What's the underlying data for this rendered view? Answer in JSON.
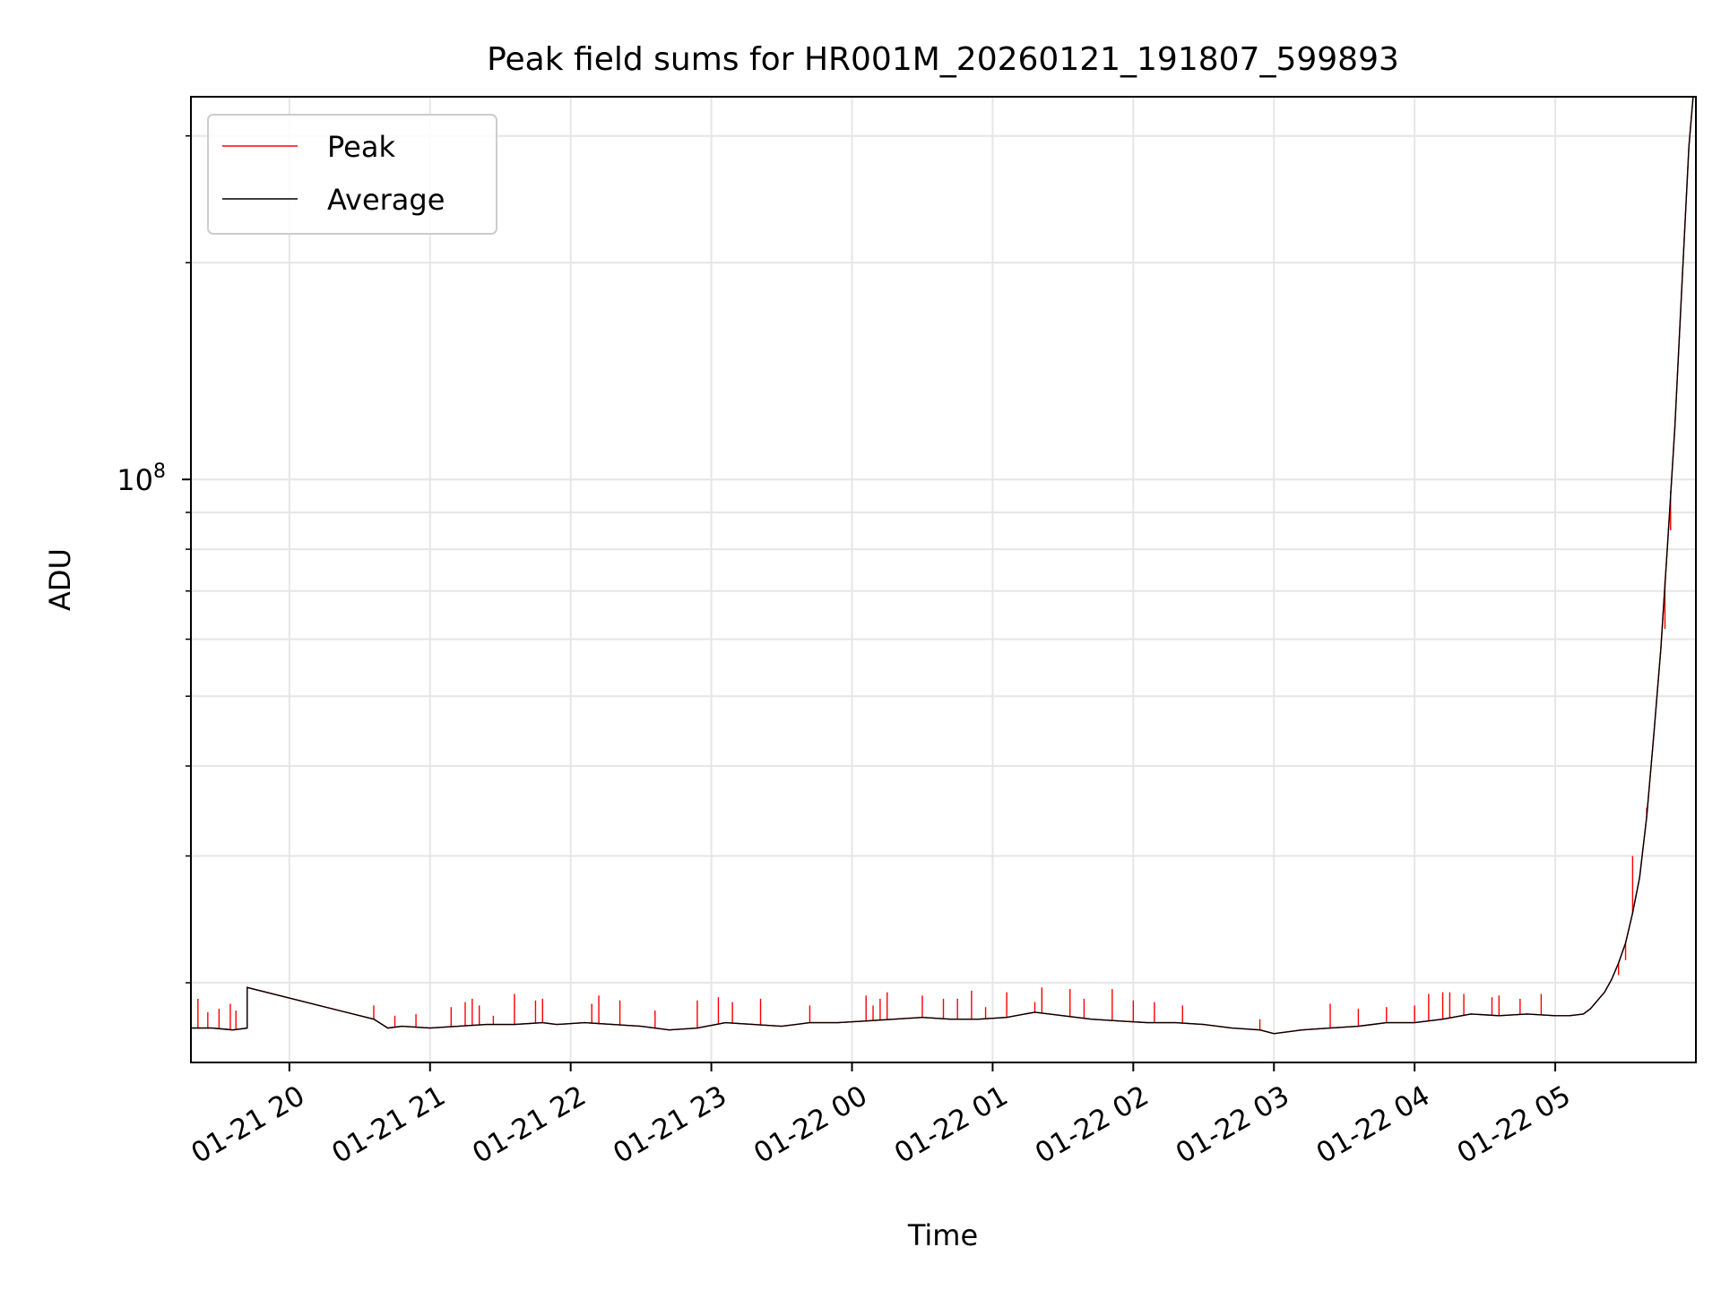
{
  "chart_data": {
    "type": "line",
    "title": "Peak field sums for HR001M_20260121_191807_599893",
    "xlabel": "Time",
    "ylabel": "ADU",
    "yscale": "log",
    "xlim_hours": [
      -0.7,
      10.0
    ],
    "ylim": [
      15500000,
      340000000
    ],
    "grid": true,
    "legend_position": "upper-left",
    "x_ticks": [
      {
        "t": 0,
        "label": "01-21 20"
      },
      {
        "t": 1,
        "label": "01-21 21"
      },
      {
        "t": 2,
        "label": "01-21 22"
      },
      {
        "t": 3,
        "label": "01-21 23"
      },
      {
        "t": 4,
        "label": "01-22 00"
      },
      {
        "t": 5,
        "label": "01-22 01"
      },
      {
        "t": 6,
        "label": "01-22 02"
      },
      {
        "t": 7,
        "label": "01-22 03"
      },
      {
        "t": 8,
        "label": "01-22 04"
      },
      {
        "t": 9,
        "label": "01-22 05"
      }
    ],
    "y_major_ticks": [
      {
        "value": 100000000,
        "base": "10",
        "exponent": "8"
      }
    ],
    "y_minor_ticks": [
      20000000,
      30000000,
      40000000,
      50000000,
      60000000,
      70000000,
      80000000,
      90000000,
      200000000,
      300000000
    ],
    "series": [
      {
        "name": "Average",
        "color": "#000000",
        "points": [
          [
            -0.7,
            17.3
          ],
          [
            -0.55,
            17.3
          ],
          [
            -0.4,
            17.2
          ],
          [
            -0.3,
            17.3
          ],
          [
            -0.3,
            19.7
          ],
          [
            0.6,
            17.8
          ],
          [
            0.7,
            17.3
          ],
          [
            0.8,
            17.4
          ],
          [
            1.0,
            17.3
          ],
          [
            1.2,
            17.4
          ],
          [
            1.4,
            17.5
          ],
          [
            1.6,
            17.5
          ],
          [
            1.8,
            17.6
          ],
          [
            1.9,
            17.5
          ],
          [
            2.1,
            17.6
          ],
          [
            2.3,
            17.5
          ],
          [
            2.5,
            17.4
          ],
          [
            2.7,
            17.2
          ],
          [
            2.9,
            17.3
          ],
          [
            3.1,
            17.6
          ],
          [
            3.3,
            17.5
          ],
          [
            3.5,
            17.4
          ],
          [
            3.7,
            17.6
          ],
          [
            3.9,
            17.6
          ],
          [
            4.1,
            17.7
          ],
          [
            4.3,
            17.8
          ],
          [
            4.5,
            17.9
          ],
          [
            4.7,
            17.8
          ],
          [
            4.9,
            17.8
          ],
          [
            5.1,
            17.9
          ],
          [
            5.3,
            18.2
          ],
          [
            5.5,
            18.0
          ],
          [
            5.7,
            17.8
          ],
          [
            5.9,
            17.7
          ],
          [
            6.1,
            17.6
          ],
          [
            6.3,
            17.6
          ],
          [
            6.5,
            17.5
          ],
          [
            6.7,
            17.3
          ],
          [
            6.9,
            17.2
          ],
          [
            7.0,
            17.0
          ],
          [
            7.2,
            17.2
          ],
          [
            7.4,
            17.3
          ],
          [
            7.6,
            17.4
          ],
          [
            7.8,
            17.6
          ],
          [
            8.0,
            17.6
          ],
          [
            8.2,
            17.8
          ],
          [
            8.4,
            18.1
          ],
          [
            8.6,
            18.0
          ],
          [
            8.8,
            18.1
          ],
          [
            9.0,
            18.0
          ],
          [
            9.1,
            18.0
          ],
          [
            9.2,
            18.1
          ],
          [
            9.25,
            18.4
          ],
          [
            9.3,
            18.9
          ],
          [
            9.35,
            19.4
          ],
          [
            9.4,
            20.2
          ],
          [
            9.45,
            21.3
          ],
          [
            9.5,
            22.7
          ],
          [
            9.55,
            25.0
          ],
          [
            9.6,
            28.0
          ],
          [
            9.65,
            34.0
          ],
          [
            9.7,
            44.0
          ],
          [
            9.75,
            58.0
          ],
          [
            9.8,
            82.0
          ],
          [
            9.85,
            118.0
          ],
          [
            9.9,
            185.0
          ],
          [
            9.95,
            290.0
          ],
          [
            9.98,
            340.0
          ]
        ]
      },
      {
        "name": "Peak",
        "color": "#ff0000",
        "points": [
          [
            -0.7,
            17.3
          ],
          [
            -0.55,
            17.3
          ],
          [
            -0.4,
            17.2
          ],
          [
            -0.3,
            17.3
          ],
          [
            -0.3,
            19.7
          ],
          [
            0.6,
            17.8
          ],
          [
            0.7,
            17.3
          ],
          [
            0.8,
            17.4
          ],
          [
            1.0,
            17.3
          ],
          [
            1.2,
            17.4
          ],
          [
            1.4,
            17.5
          ],
          [
            1.6,
            17.5
          ],
          [
            1.8,
            17.6
          ],
          [
            1.9,
            17.5
          ],
          [
            2.1,
            17.6
          ],
          [
            2.3,
            17.5
          ],
          [
            2.5,
            17.4
          ],
          [
            2.7,
            17.2
          ],
          [
            2.9,
            17.3
          ],
          [
            3.1,
            17.6
          ],
          [
            3.3,
            17.5
          ],
          [
            3.5,
            17.4
          ],
          [
            3.7,
            17.6
          ],
          [
            3.9,
            17.6
          ],
          [
            4.1,
            17.7
          ],
          [
            4.3,
            17.8
          ],
          [
            4.5,
            17.9
          ],
          [
            4.7,
            17.8
          ],
          [
            4.9,
            17.8
          ],
          [
            5.1,
            17.9
          ],
          [
            5.3,
            18.2
          ],
          [
            5.5,
            18.0
          ],
          [
            5.7,
            17.8
          ],
          [
            5.9,
            17.7
          ],
          [
            6.1,
            17.6
          ],
          [
            6.3,
            17.6
          ],
          [
            6.5,
            17.5
          ],
          [
            6.7,
            17.3
          ],
          [
            6.9,
            17.2
          ],
          [
            7.0,
            17.0
          ],
          [
            7.2,
            17.2
          ],
          [
            7.4,
            17.3
          ],
          [
            7.6,
            17.4
          ],
          [
            7.8,
            17.6
          ],
          [
            8.0,
            17.6
          ],
          [
            8.2,
            17.8
          ],
          [
            8.4,
            18.1
          ],
          [
            8.6,
            18.0
          ],
          [
            8.8,
            18.1
          ],
          [
            9.0,
            18.0
          ],
          [
            9.1,
            18.0
          ],
          [
            9.2,
            18.1
          ],
          [
            9.25,
            18.4
          ],
          [
            9.3,
            18.9
          ],
          [
            9.35,
            19.4
          ],
          [
            9.4,
            20.2
          ],
          [
            9.45,
            21.3
          ],
          [
            9.5,
            22.7
          ],
          [
            9.55,
            25.0
          ],
          [
            9.6,
            28.0
          ],
          [
            9.65,
            34.0
          ],
          [
            9.7,
            44.0
          ],
          [
            9.75,
            58.0
          ],
          [
            9.8,
            82.0
          ],
          [
            9.85,
            118.0
          ],
          [
            9.9,
            185.0
          ],
          [
            9.95,
            290.0
          ],
          [
            9.98,
            340.0
          ]
        ],
        "spikes_t_and_peak_millions": [
          [
            -0.65,
            19.0
          ],
          [
            -0.58,
            18.2
          ],
          [
            -0.5,
            18.4
          ],
          [
            -0.42,
            18.7
          ],
          [
            -0.38,
            18.3
          ],
          [
            0.6,
            18.6
          ],
          [
            0.75,
            18.0
          ],
          [
            0.9,
            18.1
          ],
          [
            1.15,
            18.5
          ],
          [
            1.25,
            18.8
          ],
          [
            1.3,
            19.0
          ],
          [
            1.35,
            18.6
          ],
          [
            1.45,
            18.0
          ],
          [
            1.6,
            19.3
          ],
          [
            1.75,
            18.9
          ],
          [
            1.8,
            19.0
          ],
          [
            2.15,
            18.7
          ],
          [
            2.2,
            19.2
          ],
          [
            2.35,
            18.9
          ],
          [
            2.6,
            18.3
          ],
          [
            2.9,
            18.9
          ],
          [
            3.05,
            19.1
          ],
          [
            3.15,
            18.8
          ],
          [
            3.35,
            19.0
          ],
          [
            3.7,
            18.6
          ],
          [
            4.1,
            19.2
          ],
          [
            4.15,
            18.6
          ],
          [
            4.2,
            19.0
          ],
          [
            4.25,
            19.4
          ],
          [
            4.5,
            19.2
          ],
          [
            4.65,
            19.0
          ],
          [
            4.75,
            19.0
          ],
          [
            4.85,
            19.5
          ],
          [
            4.95,
            18.5
          ],
          [
            5.1,
            19.4
          ],
          [
            5.3,
            18.8
          ],
          [
            5.35,
            19.7
          ],
          [
            5.55,
            19.6
          ],
          [
            5.65,
            19.0
          ],
          [
            5.85,
            19.6
          ],
          [
            6.0,
            18.9
          ],
          [
            6.15,
            18.8
          ],
          [
            6.35,
            18.6
          ],
          [
            6.9,
            17.8
          ],
          [
            7.4,
            18.7
          ],
          [
            7.6,
            18.4
          ],
          [
            7.8,
            18.5
          ],
          [
            8.0,
            18.6
          ],
          [
            8.1,
            19.3
          ],
          [
            8.2,
            19.4
          ],
          [
            8.25,
            19.4
          ],
          [
            8.35,
            19.3
          ],
          [
            8.55,
            19.1
          ],
          [
            8.6,
            19.2
          ],
          [
            8.75,
            19.0
          ],
          [
            8.9,
            19.3
          ],
          [
            9.45,
            20.5
          ],
          [
            9.5,
            21.5
          ],
          [
            9.55,
            30.0
          ],
          [
            9.65,
            35.0
          ],
          [
            9.78,
            62.0
          ],
          [
            9.82,
            85.0
          ]
        ],
        "units": "millions"
      }
    ]
  }
}
